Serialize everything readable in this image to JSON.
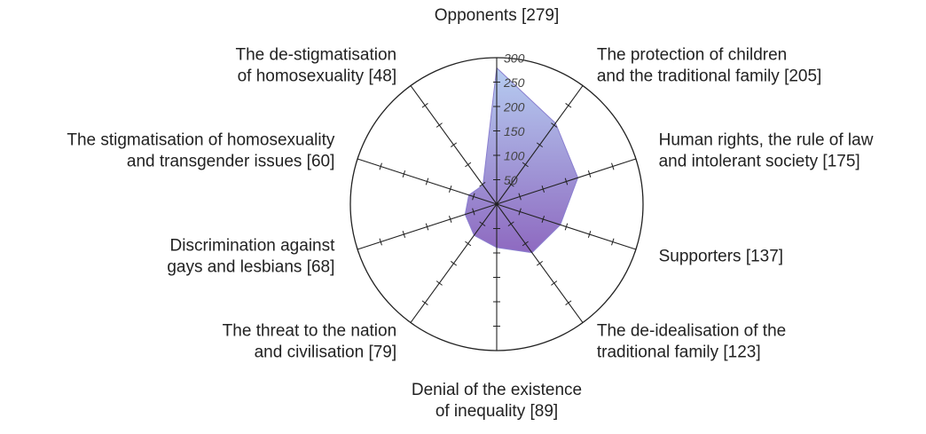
{
  "chart_data": {
    "type": "radar",
    "categories": [
      [
        "Opponents [279]"
      ],
      [
        "The protection of children",
        "and the traditional family [205]"
      ],
      [
        "Human rights, the rule of law",
        "and intolerant society [175]"
      ],
      [
        "Supporters [137]"
      ],
      [
        "The de-idealisation of the",
        "traditional family [123]"
      ],
      [
        "Denial of the existence",
        "of inequality [89]"
      ],
      [
        "The threat to the nation",
        "and civilisation [79]"
      ],
      [
        "Discrimination against",
        "gays and lesbians [68]"
      ],
      [
        "The stigmatisation of homosexuality",
        "and transgender issues [60]"
      ],
      [
        "The de-stigmatisation",
        "of homosexuality [48]"
      ]
    ],
    "values": [
      279,
      205,
      175,
      137,
      123,
      89,
      79,
      68,
      60,
      48
    ],
    "color": "#8a7fd0",
    "rlim": [
      0,
      300
    ],
    "rticks": [
      50,
      100,
      150,
      200,
      250,
      300
    ]
  }
}
